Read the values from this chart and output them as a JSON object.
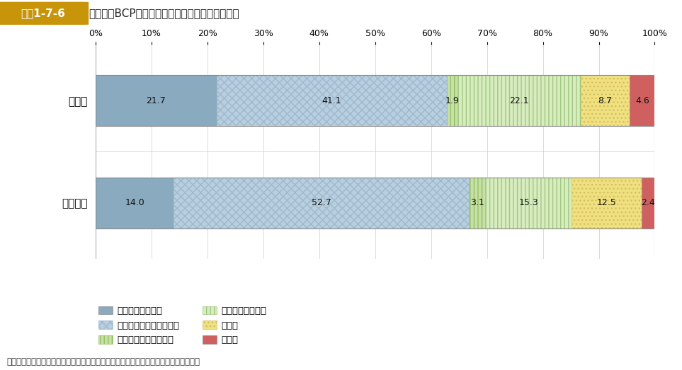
{
  "header_label": "図表1-7-6",
  "header_text": "被災時にBCPが役に立ったかについての回答状況",
  "categories": [
    "大企業",
    "中堅企業"
  ],
  "segments": [
    {
      "label": "とても役に立った",
      "values": [
        21.7,
        14.0
      ],
      "color": "#8aaabf",
      "hatch": null,
      "edge": "#7a9aaf"
    },
    {
      "label": "少しは役に立ったと思う",
      "values": [
        41.1,
        52.7
      ],
      "color": "#b8cfe0",
      "hatch": "xxx",
      "edge": "#a0b8cc"
    },
    {
      "label": "全く役に立たなかった",
      "values": [
        1.9,
        3.1
      ],
      "color": "#c8e0a8",
      "hatch": "|||",
      "edge": "#90c060"
    },
    {
      "label": "役に立ったか不明",
      "values": [
        22.1,
        15.3
      ],
      "color": "#d8ecc0",
      "hatch": "|||",
      "edge": "#a0c880"
    },
    {
      "label": "その他",
      "values": [
        8.7,
        12.5
      ],
      "color": "#f0e080",
      "hatch": "...",
      "edge": "#d0c060"
    },
    {
      "label": "無回答",
      "values": [
        4.6,
        2.4
      ],
      "color": "#d06060",
      "hatch": null,
      "edge": "#b84848"
    }
  ],
  "footer": "出典：「令和元年度企業の事業継続及び防災の取組に関する実態調査」より内閣府作成",
  "header_bg": "#d4a930",
  "header_label_bg": "#c49820",
  "bar_height": 0.5,
  "xlim": [
    0,
    100
  ],
  "xticks": [
    0,
    10,
    20,
    30,
    40,
    50,
    60,
    70,
    80,
    90,
    100
  ],
  "xtick_labels": [
    "0%",
    "10%",
    "20%",
    "30%",
    "40%",
    "50%",
    "60%",
    "70%",
    "80%",
    "90%",
    "100%"
  ],
  "background_color": "#ffffff",
  "grid_color": "#cccccc",
  "chart_box_color": "#aaaaaa"
}
